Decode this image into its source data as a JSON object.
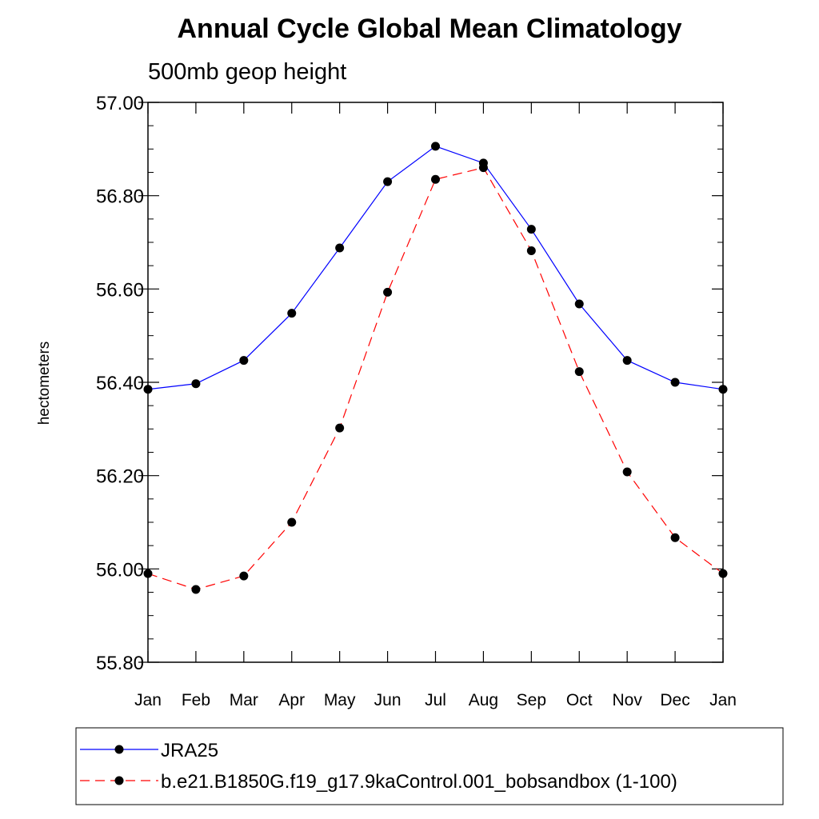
{
  "chart_data": {
    "type": "line",
    "title": "Annual Cycle Global Mean Climatology",
    "subtitle": "500mb geop height",
    "ylabel": "hectometers",
    "xlabel": "",
    "ylim": [
      55.8,
      57.0
    ],
    "y_ticks": [
      "57.00",
      "56.80",
      "56.60",
      "56.40",
      "56.20",
      "56.00",
      "55.80"
    ],
    "y_tick_values": [
      57.0,
      56.8,
      56.6,
      56.4,
      56.2,
      56.0,
      55.8
    ],
    "categories": [
      "Jan",
      "Feb",
      "Mar",
      "Apr",
      "May",
      "Jun",
      "Jul",
      "Aug",
      "Sep",
      "Oct",
      "Nov",
      "Dec",
      "Jan"
    ],
    "series": [
      {
        "name": "JRA25",
        "color": "#0000ff",
        "line_style": "solid",
        "values": [
          56.385,
          56.397,
          56.447,
          56.548,
          56.688,
          56.83,
          56.906,
          56.87,
          56.728,
          56.568,
          56.447,
          56.4,
          56.385
        ]
      },
      {
        "name": "b.e21.B1850G.f19_g17.9kaControl.001_bobsandbox (1-100)",
        "color": "#ff0000",
        "line_style": "dashed",
        "values": [
          55.99,
          55.956,
          55.985,
          56.1,
          56.302,
          56.593,
          56.835,
          56.86,
          56.682,
          56.423,
          56.208,
          56.067,
          55.99
        ]
      }
    ],
    "legend_position": "bottom"
  }
}
